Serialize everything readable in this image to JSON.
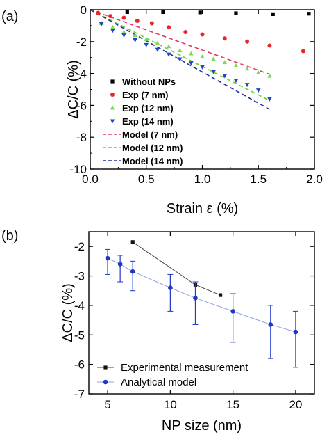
{
  "chart_data": [
    {
      "panel": "(a)",
      "type": "scatter",
      "xlabel": "Strain ε (%)",
      "ylabel": "ΔC/C (%)",
      "xlim": [
        0,
        2.0
      ],
      "ylim": [
        -10,
        0
      ],
      "xticks": [
        "0.0",
        "0.5",
        "1.0",
        "1.5",
        "2.0"
      ],
      "yticks": [
        "0",
        "-2",
        "-4",
        "-6",
        "-8",
        "-10"
      ],
      "legend": "bottom-left",
      "series": [
        {
          "name": "Without NPs",
          "kind": "marker",
          "marker": "square",
          "color": "#000000",
          "x": [
            0.33,
            0.65,
            0.98,
            1.3,
            1.63,
            1.95
          ],
          "y": [
            -0.15,
            -0.15,
            -0.17,
            -0.22,
            -0.28,
            -0.25
          ]
        },
        {
          "name": "Exp (7 nm)",
          "kind": "marker",
          "marker": "circle",
          "color": "#e8262a",
          "x": [
            0.07,
            0.18,
            0.3,
            0.42,
            0.55,
            0.7,
            0.85,
            1.0,
            1.2,
            1.4,
            1.6,
            1.9
          ],
          "y": [
            -0.2,
            -0.4,
            -0.5,
            -0.7,
            -0.85,
            -1.1,
            -1.4,
            -1.55,
            -1.8,
            -2.0,
            -2.25,
            -2.6
          ]
        },
        {
          "name": "Exp (12 nm)",
          "kind": "marker",
          "marker": "triangle-up",
          "color": "#7ed957",
          "x": [
            0.1,
            0.2,
            0.3,
            0.4,
            0.5,
            0.6,
            0.7,
            0.8,
            0.9,
            1.0,
            1.1,
            1.2,
            1.3,
            1.4,
            1.5,
            1.6
          ],
          "y": [
            -0.85,
            -1.1,
            -1.4,
            -1.6,
            -1.85,
            -2.1,
            -2.3,
            -2.55,
            -2.75,
            -2.95,
            -3.1,
            -3.3,
            -3.5,
            -3.7,
            -3.95,
            -4.15
          ]
        },
        {
          "name": "Exp (14 nm)",
          "kind": "marker",
          "marker": "triangle-down",
          "color": "#1f45c8",
          "x": [
            0.1,
            0.2,
            0.3,
            0.4,
            0.5,
            0.6,
            0.7,
            0.8,
            0.9,
            1.0,
            1.1,
            1.2,
            1.3,
            1.4,
            1.5,
            1.6
          ],
          "y": [
            -0.9,
            -1.3,
            -1.6,
            -1.9,
            -2.2,
            -2.5,
            -2.8,
            -3.1,
            -3.35,
            -3.6,
            -3.9,
            -4.15,
            -4.45,
            -4.7,
            -5.05,
            -5.6
          ]
        },
        {
          "name": "Model (7 nm)",
          "kind": "dashed-line",
          "color": "#e33a5a",
          "x": [
            0.0,
            1.6
          ],
          "y": [
            0.0,
            -4.05
          ]
        },
        {
          "name": "Model (12 nm)",
          "kind": "dashed-line",
          "color": "#6bd12f",
          "x": [
            0.0,
            1.6
          ],
          "y": [
            0.0,
            -5.7
          ]
        },
        {
          "name": "Model (14 nm)",
          "kind": "dashed-line",
          "color": "#1a2f9a",
          "x": [
            0.0,
            1.6
          ],
          "y": [
            0.0,
            -6.25
          ]
        }
      ]
    },
    {
      "panel": "(b)",
      "type": "line",
      "xlabel": "NP size (nm)",
      "ylabel": "ΔC/C (%)",
      "xlim": [
        3.5,
        21.5
      ],
      "ylim": [
        -7,
        -1.5
      ],
      "xticks": [
        "5",
        "10",
        "15",
        "20"
      ],
      "yticks": [
        "-2",
        "-3",
        "-4",
        "-5",
        "-6",
        "-7"
      ],
      "legend": "bottom-left",
      "series": [
        {
          "name": "Experimental measurement",
          "marker": "square",
          "color": "#111111",
          "x": [
            7,
            12,
            14
          ],
          "y": [
            -1.85,
            -3.3,
            -3.65
          ]
        },
        {
          "name": "Analytical model",
          "marker": "circle",
          "color": "#1f36c9",
          "x": [
            5,
            6,
            7,
            10,
            12,
            15,
            18,
            20
          ],
          "y": [
            -2.4,
            -2.6,
            -2.85,
            -3.4,
            -3.75,
            -4.2,
            -4.65,
            -4.9
          ],
          "err_low": [
            0.55,
            0.6,
            0.65,
            0.8,
            0.9,
            1.05,
            1.15,
            1.2
          ],
          "err_high": [
            0.3,
            0.3,
            0.35,
            0.45,
            0.55,
            0.6,
            0.65,
            0.7
          ]
        }
      ]
    }
  ]
}
